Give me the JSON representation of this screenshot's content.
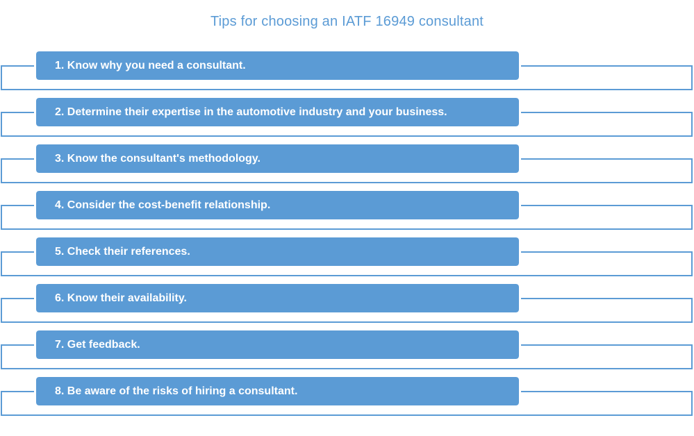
{
  "title": "Tips for choosing an IATF 16949 consultant",
  "colors": {
    "accent": "#5b9bd5",
    "bar_text": "#ffffff",
    "background": "#ffffff"
  },
  "tips": [
    {
      "label": "1. Know why you need a consultant."
    },
    {
      "label": "2. Determine their expertise in the automotive industry and your business."
    },
    {
      "label": "3. Know the consultant's methodology."
    },
    {
      "label": "4. Consider the cost-benefit relationship."
    },
    {
      "label": "5. Check their references."
    },
    {
      "label": "6. Know their availability."
    },
    {
      "label": "7. Get feedback."
    },
    {
      "label": "8. Be aware of the risks of hiring a consultant."
    }
  ]
}
